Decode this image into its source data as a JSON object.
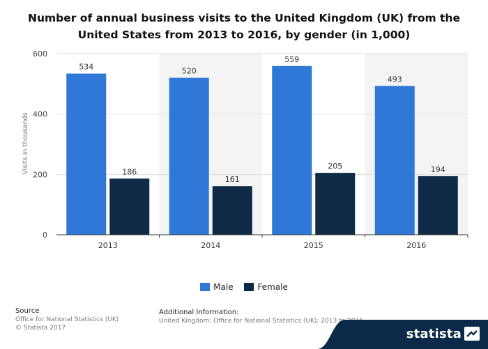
{
  "chart_data": {
    "type": "bar",
    "title": "Number of annual business visits to the United Kingdom (UK) from the United States from 2013 to 2016, by gender (in 1,000)",
    "title_lines": [
      "Number of annual business visits to the United Kingdom (UK) from the",
      "United States from 2013 to 2016, by gender (in 1,000)"
    ],
    "categories": [
      "2013",
      "2014",
      "2015",
      "2016"
    ],
    "series": [
      {
        "name": "Male",
        "values": [
          534,
          520,
          559,
          493
        ],
        "color": "#2f78d8"
      },
      {
        "name": "Female",
        "values": [
          186,
          161,
          205,
          194
        ],
        "color": "#0f2a47"
      }
    ],
    "xlabel": "",
    "ylabel": "Visits in thousands",
    "ylim": [
      0,
      600
    ],
    "yticks": [
      0,
      200,
      400,
      600
    ],
    "grid": true,
    "legend_position": "bottom-center"
  },
  "source": {
    "heading": "Source",
    "line1": "Office for National Statistics (UK)",
    "line2": "© Statista 2017"
  },
  "additional_info": {
    "heading": "Additional Information:",
    "text": "United Kingdom; Office for National Statistics (UK); 2013 to 2016"
  },
  "logo": {
    "text": "statista",
    "icon": "statista-logo-icon",
    "background_color": "#0b2a4a"
  }
}
